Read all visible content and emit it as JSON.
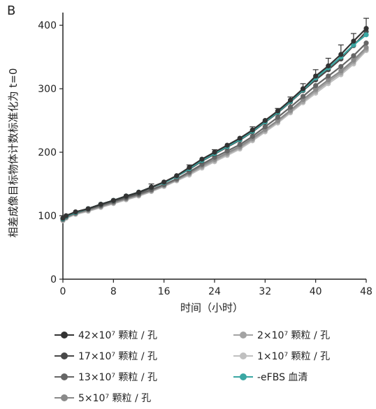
{
  "panel_label": "B",
  "chart_data": {
    "type": "line",
    "title": "",
    "xlabel": "时间（小时）",
    "ylabel": "相差成像目标物体计数标准化为 t=0",
    "xlim": [
      0,
      48
    ],
    "ylim": [
      0,
      420
    ],
    "xticks": [
      0,
      8,
      16,
      24,
      32,
      40,
      48
    ],
    "yticks": [
      0,
      100,
      200,
      300,
      400
    ],
    "x": [
      0,
      0.5,
      2,
      4,
      6,
      8,
      10,
      12,
      14,
      16,
      18,
      20,
      22,
      24,
      26,
      28,
      30,
      32,
      34,
      36,
      38,
      40,
      42,
      44,
      46,
      48
    ],
    "series": [
      {
        "name": "42×10⁷ 颗粒 / 孔",
        "color": "#333333",
        "values": [
          96,
          100,
          106,
          111,
          118,
          124,
          131,
          137,
          145,
          153,
          163,
          176,
          189,
          200,
          211,
          222,
          235,
          250,
          265,
          282,
          300,
          320,
          336,
          354,
          375,
          395
        ]
      },
      {
        "name": "17×10⁷ 颗粒 / 孔",
        "color": "#484848",
        "values": [
          95,
          99,
          105,
          111,
          118,
          124,
          130,
          136,
          144,
          152,
          162,
          173,
          186,
          197,
          208,
          219,
          232,
          247,
          262,
          279,
          297,
          314,
          330,
          347,
          368,
          390
        ]
      },
      {
        "name": "13×10⁷ 颗粒 / 孔",
        "color": "#666666",
        "values": [
          94,
          98,
          104,
          110,
          116,
          122,
          128,
          134,
          141,
          149,
          158,
          169,
          181,
          192,
          202,
          212,
          225,
          240,
          255,
          271,
          288,
          305,
          320,
          335,
          352,
          372
        ]
      },
      {
        "name": "5×10⁷ 颗粒 / 孔",
        "color": "#8a8a8a",
        "values": [
          94,
          98,
          104,
          109,
          115,
          121,
          127,
          133,
          140,
          148,
          157,
          167,
          179,
          189,
          199,
          209,
          222,
          236,
          250,
          266,
          283,
          299,
          314,
          328,
          345,
          365
        ]
      },
      {
        "name": "2×10⁷ 颗粒 / 孔",
        "color": "#a3a3a3",
        "values": [
          93,
          97,
          103,
          108,
          114,
          120,
          126,
          132,
          139,
          147,
          156,
          166,
          177,
          187,
          197,
          207,
          220,
          234,
          248,
          264,
          280,
          296,
          311,
          325,
          342,
          362
        ]
      },
      {
        "name": "1×10⁷ 颗粒 / 孔",
        "color": "#c0c0c0",
        "values": [
          92,
          96,
          102,
          107,
          113,
          119,
          125,
          131,
          138,
          146,
          155,
          164,
          175,
          185,
          195,
          205,
          218,
          232,
          246,
          262,
          278,
          293,
          308,
          322,
          339,
          360
        ]
      },
      {
        "name": "-eFBS 血清",
        "color": "#3aa7a3",
        "values": [
          95,
          99,
          105,
          111,
          118,
          124,
          131,
          137,
          145,
          152,
          162,
          174,
          187,
          198,
          209,
          220,
          233,
          248,
          263,
          280,
          298,
          317,
          333,
          350,
          369,
          385
        ]
      }
    ],
    "error_bars_top_series": [
      0,
      0,
      0,
      0,
      0,
      0,
      0,
      0,
      5,
      0,
      0,
      4,
      0,
      4,
      0,
      0,
      5,
      0,
      4,
      5,
      8,
      10,
      12,
      15,
      12,
      16
    ]
  },
  "legend": {
    "items": [
      {
        "label": "42×10⁷ 颗粒 / 孔",
        "color": "#333333"
      },
      {
        "label": "2×10⁷ 颗粒 / 孔",
        "color": "#a3a3a3"
      },
      {
        "label": "17×10⁷ 颗粒 / 孔",
        "color": "#484848"
      },
      {
        "label": "1×10⁷ 颗粒 / 孔",
        "color": "#c0c0c0"
      },
      {
        "label": "13×10⁷ 颗粒 / 孔",
        "color": "#666666"
      },
      {
        "label": "-eFBS 血清",
        "color": "#3aa7a3"
      },
      {
        "label": "5×10⁷ 颗粒 / 孔",
        "color": "#8a8a8a"
      }
    ]
  }
}
